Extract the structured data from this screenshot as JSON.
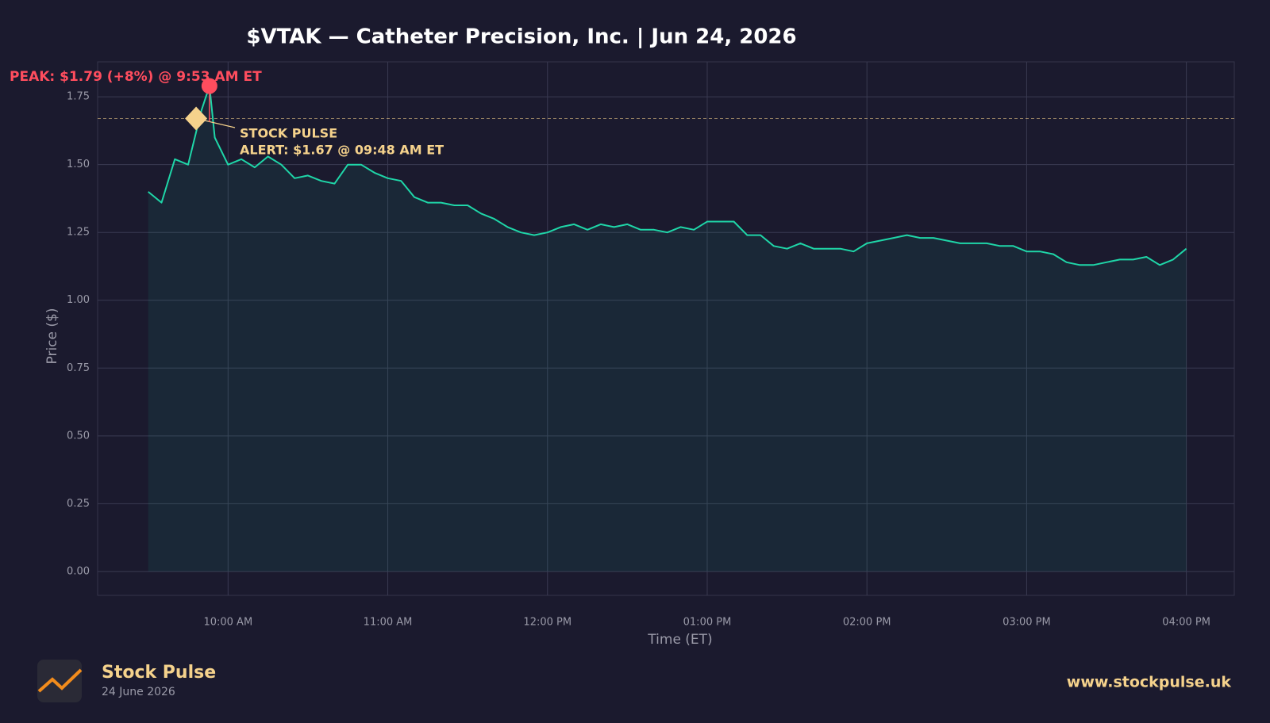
{
  "chart_data": {
    "type": "line",
    "title": "$VTAK — Catheter Precision, Inc.  |  Jun 24, 2026",
    "xlabel": "Time (ET)",
    "ylabel": "Price ($)",
    "color": "#1fd6a8",
    "x": [
      "09:30",
      "09:35",
      "09:40",
      "09:45",
      "09:50",
      "09:53",
      "09:55",
      "10:00",
      "10:05",
      "10:10",
      "10:15",
      "10:20",
      "10:25",
      "10:30",
      "10:35",
      "10:40",
      "10:45",
      "10:50",
      "10:55",
      "11:00",
      "11:05",
      "11:10",
      "11:15",
      "11:20",
      "11:25",
      "11:30",
      "11:35",
      "11:40",
      "11:45",
      "11:50",
      "11:55",
      "12:00",
      "12:05",
      "12:10",
      "12:15",
      "12:20",
      "12:25",
      "12:30",
      "12:35",
      "12:40",
      "12:45",
      "12:50",
      "12:55",
      "13:00",
      "13:05",
      "13:10",
      "13:15",
      "13:20",
      "13:25",
      "13:30",
      "13:35",
      "13:40",
      "13:45",
      "13:50",
      "13:55",
      "14:00",
      "14:05",
      "14:10",
      "14:15",
      "14:20",
      "14:25",
      "14:30",
      "14:35",
      "14:40",
      "14:45",
      "14:50",
      "14:55",
      "15:00",
      "15:05",
      "15:10",
      "15:15",
      "15:20",
      "15:25",
      "15:30",
      "15:35",
      "15:40",
      "15:45",
      "15:50",
      "15:55",
      "16:00"
    ],
    "values": [
      1.4,
      1.36,
      1.52,
      1.5,
      1.7,
      1.79,
      1.6,
      1.5,
      1.52,
      1.49,
      1.53,
      1.5,
      1.45,
      1.46,
      1.44,
      1.43,
      1.5,
      1.5,
      1.47,
      1.45,
      1.44,
      1.38,
      1.36,
      1.36,
      1.35,
      1.35,
      1.32,
      1.3,
      1.27,
      1.25,
      1.24,
      1.25,
      1.27,
      1.28,
      1.26,
      1.28,
      1.27,
      1.28,
      1.26,
      1.26,
      1.25,
      1.27,
      1.26,
      1.29,
      1.29,
      1.29,
      1.24,
      1.24,
      1.2,
      1.19,
      1.21,
      1.19,
      1.19,
      1.19,
      1.18,
      1.21,
      1.22,
      1.23,
      1.24,
      1.23,
      1.23,
      1.22,
      1.21,
      1.21,
      1.21,
      1.2,
      1.2,
      1.18,
      1.18,
      1.17,
      1.14,
      1.13,
      1.13,
      1.14,
      1.15,
      1.15,
      1.16,
      1.13,
      1.15,
      1.19
    ],
    "xlim": [
      "09:11",
      "16:18"
    ],
    "xticks": [
      {
        "value": "10:00",
        "label": "10:00 AM"
      },
      {
        "value": "11:00",
        "label": "11:00 AM"
      },
      {
        "value": "12:00",
        "label": "12:00 PM"
      },
      {
        "value": "13:00",
        "label": "01:00 PM"
      },
      {
        "value": "14:00",
        "label": "02:00 PM"
      },
      {
        "value": "15:00",
        "label": "03:00 PM"
      },
      {
        "value": "16:00",
        "label": "04:00 PM"
      }
    ],
    "ylim": [
      -0.088,
      1.879
    ],
    "yticks": [
      {
        "value": 0,
        "label": "0.00"
      },
      0.25,
      {
        "value": 0.5,
        "label": "0.50"
      },
      0.75,
      {
        "value": 1,
        "label": "1.00"
      },
      1.25,
      {
        "value": 1.5,
        "label": "1.50"
      },
      1.75
    ],
    "grid": true,
    "annotations": [
      {
        "text": "PEAK: $1.79 (+8%) @ 9:53 AM ET",
        "x": "09:53",
        "y": 1.79,
        "color": "#ff4d5e"
      },
      {
        "label": "STOCK PULSE",
        "text": "ALERT: $1.67 @ 09:48 AM ET",
        "x": "09:48",
        "y": 1.67,
        "color": "#f5d28c"
      }
    ]
  },
  "footer": {
    "brand": "Stock Pulse",
    "date": "24 June 2026",
    "url": "www.stockpulse.uk"
  }
}
